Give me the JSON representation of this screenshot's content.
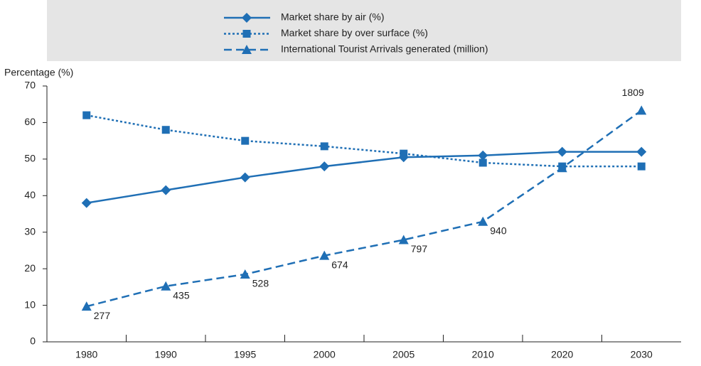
{
  "chart_data": {
    "type": "line",
    "y_label": "Percentage (%)",
    "categories": [
      "1980",
      "1990",
      "1995",
      "2000",
      "2005",
      "2010",
      "2020",
      "2030"
    ],
    "series": [
      {
        "name": "Market share by air (%)",
        "color": "#1f6fb5",
        "marker": "diamond",
        "line_style": "solid",
        "values": [
          38,
          41.5,
          45,
          48,
          50.5,
          51,
          52,
          52
        ]
      },
      {
        "name": "Market share by over surface (%)",
        "color": "#1f6fb5",
        "marker": "square",
        "line_style": "dotted",
        "values": [
          62,
          58,
          55,
          53.5,
          51.5,
          49,
          48,
          48
        ]
      },
      {
        "name": "International Tourist Arrivals generated (million)",
        "color": "#1f6fb5",
        "marker": "triangle",
        "line_style": "dashed",
        "axis": "y2",
        "values": [
          277,
          435,
          528,
          674,
          797,
          940,
          1360,
          1809
        ],
        "value_labels": [
          "277",
          "435",
          "528",
          "674",
          "797",
          "940",
          null,
          "1809"
        ]
      }
    ],
    "ylim": [
      0,
      70
    ],
    "yticks": [
      0,
      10,
      20,
      30,
      40,
      50,
      60,
      70
    ],
    "y2lim": [
      0,
      2000
    ],
    "grid": false
  }
}
